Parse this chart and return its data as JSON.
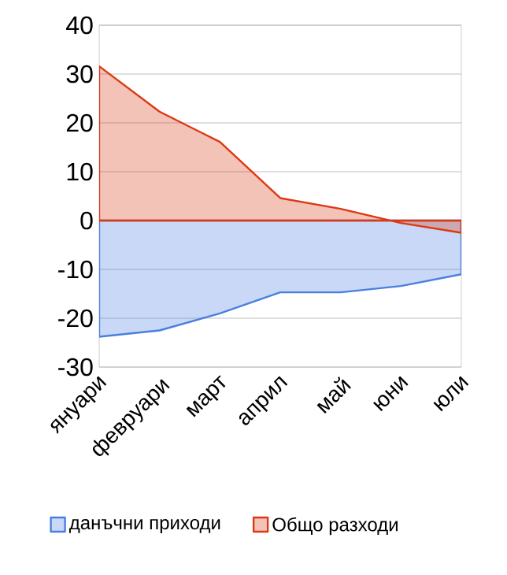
{
  "chart_data": {
    "type": "area",
    "categories": [
      "януари",
      "февруари",
      "март",
      "април",
      "май",
      "юни",
      "юли"
    ],
    "series": [
      {
        "name": "данъчни приходи",
        "color": "#4a7fe0",
        "values": [
          -23.8,
          -22.5,
          -19,
          -14.7,
          -14.7,
          -13.4,
          -11
        ]
      },
      {
        "name": "Общо разходи",
        "color": "#dc3912",
        "values": [
          31.6,
          22.3,
          16.1,
          4.6,
          2.4,
          -0.5,
          -2.5
        ]
      }
    ],
    "ylim": [
      -30,
      40
    ],
    "yticks": [
      -30,
      -20,
      -10,
      0,
      10,
      20,
      30,
      40
    ],
    "grid": "y",
    "legend": "bottom"
  }
}
